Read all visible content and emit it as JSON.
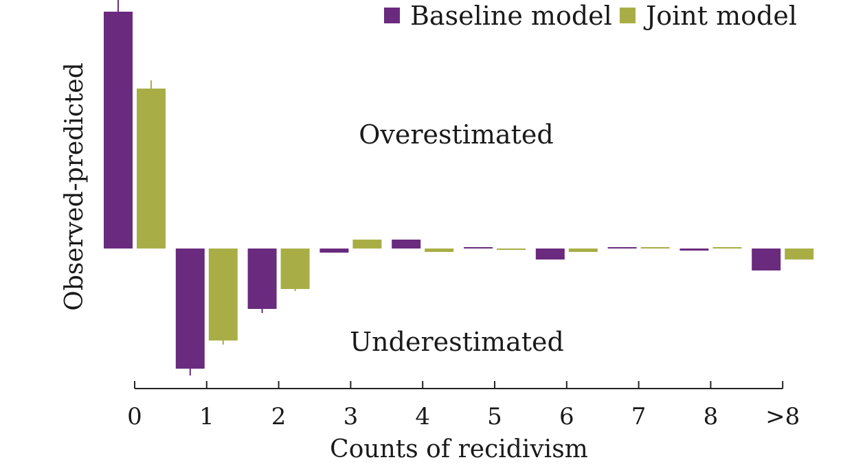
{
  "chart_data": {
    "type": "bar",
    "title": "",
    "xlabel": "Counts of recidivism",
    "ylabel": "Observed-predicted",
    "categories": [
      "0",
      "1",
      "2",
      "3",
      "4",
      "5",
      "6",
      "7",
      "8",
      ">8"
    ],
    "series": [
      {
        "name": "Baseline model",
        "color": "#6a2a7e",
        "values": [
          0.345,
          -0.175,
          -0.088,
          -0.006,
          0.013,
          0.002,
          -0.016,
          0.002,
          -0.003,
          -0.032
        ],
        "err": [
          0.02,
          0.01,
          0.006,
          0,
          0,
          0,
          0,
          0,
          0,
          0
        ]
      },
      {
        "name": "Joint model",
        "color": "#a8ae45",
        "values": [
          0.233,
          -0.134,
          -0.059,
          0.013,
          -0.005,
          -0.002,
          -0.005,
          0.002,
          0.002,
          -0.016
        ],
        "err": [
          0.012,
          0.006,
          0.003,
          0,
          0,
          0,
          0,
          0,
          0,
          0
        ]
      }
    ],
    "annotations": {
      "over": "Overestimated",
      "under": "Underestimated"
    },
    "legend_position": "top-right",
    "grid": false,
    "y_axis_drawn": false
  }
}
